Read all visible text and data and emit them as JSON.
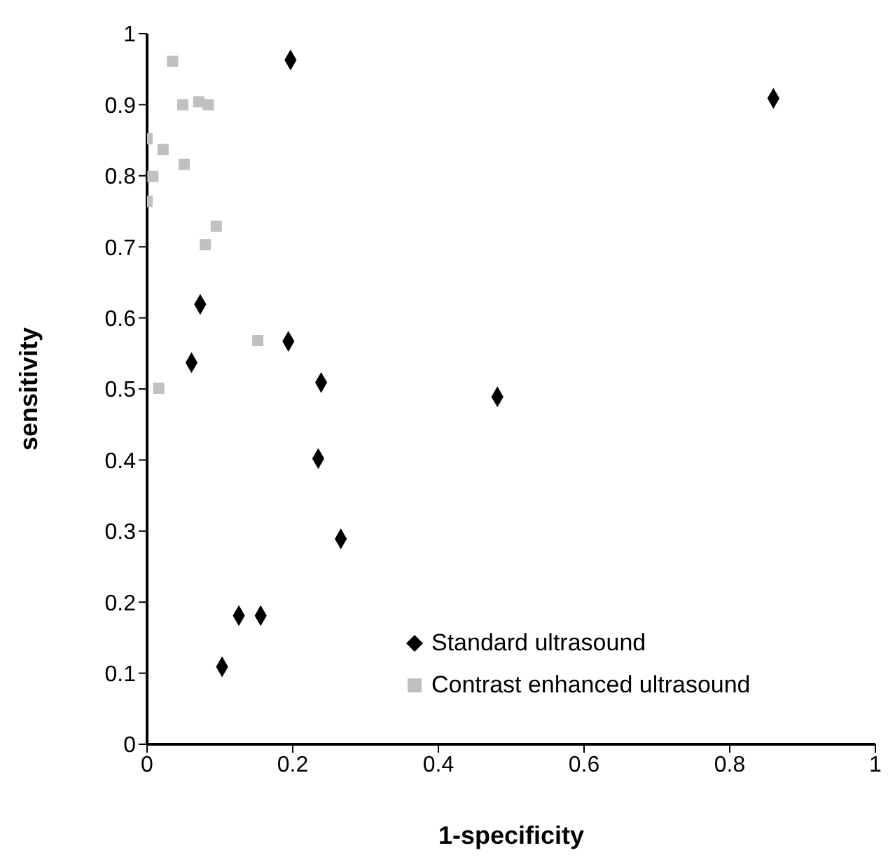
{
  "chart_data": {
    "type": "scatter",
    "xlabel": "1-specificity",
    "ylabel": "sensitivity",
    "xlim": [
      0,
      1
    ],
    "ylim": [
      0,
      1
    ],
    "xticks": [
      0,
      0.2,
      0.4,
      0.6,
      0.8,
      1
    ],
    "yticks": [
      0,
      0.1,
      0.2,
      0.3,
      0.4,
      0.5,
      0.6,
      0.7,
      0.8,
      0.9,
      1
    ],
    "grid": false,
    "legend": "bottom right",
    "marker": "diamond",
    "series": [
      {
        "name": "Standard ultrasound",
        "color": "#000000",
        "x": [
          0.197,
          0.86,
          0.481,
          0.073,
          0.194,
          0.061,
          0.239,
          0.235,
          0.266,
          0.126,
          0.156,
          0.103
        ],
        "values": [
          0.963,
          0.909,
          0.489,
          0.619,
          0.567,
          0.537,
          0.509,
          0.402,
          0.289,
          0.181,
          0.181,
          0.109
        ]
      },
      {
        "name": "Contrast enhanced ultrasound",
        "color": "#c0c0c0",
        "marker": "square",
        "x": [
          0.035,
          0.049,
          0.071,
          0.084,
          0,
          0.022,
          0.051,
          0.008,
          0,
          0.095,
          0.08,
          0.152,
          0.016
        ],
        "values": [
          0.961,
          0.9,
          0.904,
          0.9,
          0.852,
          0.837,
          0.816,
          0.799,
          0.764,
          0.729,
          0.703,
          0.568,
          0.501
        ]
      }
    ]
  }
}
